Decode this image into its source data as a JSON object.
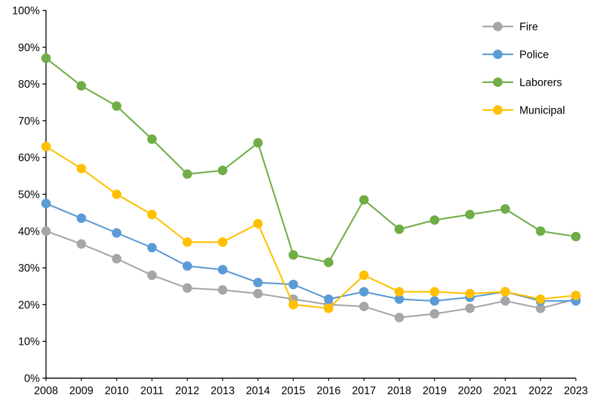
{
  "chart_data": {
    "type": "line",
    "title": "",
    "xlabel": "",
    "ylabel": "",
    "x": [
      "2008",
      "2009",
      "2010",
      "2011",
      "2012",
      "2013",
      "2014",
      "2015",
      "2016",
      "2017",
      "2018",
      "2019",
      "2020",
      "2021",
      "2022",
      "2023"
    ],
    "ylim": [
      0,
      100
    ],
    "ytick_step": 10,
    "ytick_suffix": "%",
    "grid": false,
    "legend_position": "top-right",
    "series": [
      {
        "name": "Fire",
        "color": "#A6A6A6",
        "values": [
          40,
          36.5,
          32.5,
          28,
          24.5,
          24,
          23,
          21.5,
          20,
          19.5,
          16.5,
          17.5,
          19,
          21,
          19,
          21.5
        ]
      },
      {
        "name": "Police",
        "color": "#5B9BD5",
        "values": [
          47.5,
          43.5,
          39.5,
          35.5,
          30.5,
          29.5,
          26,
          25.5,
          21.5,
          23.5,
          21.5,
          21,
          22,
          23.5,
          21,
          21
        ]
      },
      {
        "name": "Laborers",
        "color": "#70AD47",
        "values": [
          87,
          79.5,
          74,
          65,
          55.5,
          56.5,
          64,
          33.5,
          31.5,
          48.5,
          40.5,
          43,
          44.5,
          46,
          40,
          38.5
        ]
      },
      {
        "name": "Municipal",
        "color": "#FFC000",
        "values": [
          63,
          57,
          50,
          44.5,
          37,
          37,
          42,
          20,
          19,
          28,
          23.5,
          23.5,
          23,
          23.5,
          21.5,
          22.5
        ]
      }
    ]
  },
  "style": {
    "axis_color": "#000000",
    "text_color": "#000000",
    "background": "#FFFFFF"
  }
}
